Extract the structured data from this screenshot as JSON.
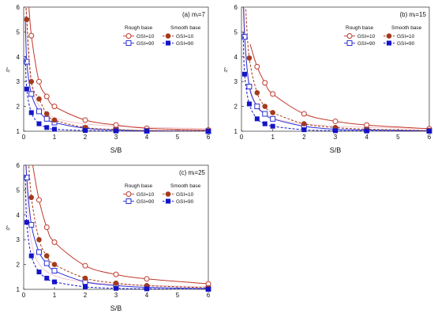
{
  "legend_headers": {
    "rough": "Rough base",
    "smooth": "Smooth base"
  },
  "colors": {
    "gsi10": "#c0392b",
    "gsi10_smooth": "#a33a1c",
    "gsi90": "#2d2fd6",
    "gsi90_smooth": "#1414c8",
    "ref_curve": "#f2b8c0"
  },
  "chart_data": [
    {
      "type": "line",
      "panel_label": "(a) mᵢ=7",
      "xlabel": "S/B",
      "ylabel": "ξᵧ",
      "xlim": [
        0,
        6
      ],
      "ylim": [
        1,
        6
      ],
      "xticks": [
        0,
        1,
        2,
        3,
        4,
        5,
        6
      ],
      "yticks": [
        1,
        2,
        3,
        4,
        5,
        6
      ],
      "grid": false,
      "legend_position": "top-right",
      "series": [
        {
          "name": "GSI=10",
          "base": "rough",
          "marker": "open-circle",
          "line": "solid",
          "color_key": "gsi10",
          "x": [
            0.25,
            0.5,
            0.75,
            1,
            2,
            3,
            4,
            6
          ],
          "y": [
            4.85,
            3.0,
            2.4,
            2.0,
            1.45,
            1.25,
            1.12,
            1.05
          ]
        },
        {
          "name": "GSI=90",
          "base": "rough",
          "marker": "open-square",
          "line": "solid",
          "color_key": "gsi90",
          "x": [
            0.1,
            0.25,
            0.5,
            0.75,
            1,
            2,
            3,
            4,
            6
          ],
          "y": [
            3.8,
            2.5,
            1.8,
            1.5,
            1.35,
            1.12,
            1.05,
            1.02,
            1.0
          ]
        },
        {
          "name": "GSI=10",
          "base": "smooth",
          "marker": "filled-circle",
          "line": "dashed",
          "color_key": "gsi10_smooth",
          "x": [
            0.1,
            0.25,
            0.5,
            0.75,
            1,
            2,
            3,
            4,
            6
          ],
          "y": [
            5.5,
            3.0,
            2.3,
            1.7,
            1.45,
            1.15,
            1.07,
            1.03,
            1.02
          ]
        },
        {
          "name": "GSI=90",
          "base": "smooth",
          "marker": "filled-square",
          "line": "dashed",
          "color_key": "gsi90_smooth",
          "x": [
            0.1,
            0.25,
            0.5,
            0.75,
            1,
            2,
            3,
            4,
            6
          ],
          "y": [
            2.7,
            1.75,
            1.3,
            1.15,
            1.08,
            1.03,
            1.01,
            1.0,
            1.0
          ]
        }
      ]
    },
    {
      "type": "line",
      "panel_label": "(b) mᵢ=15",
      "xlabel": "S/B",
      "ylabel": "ξᵧ",
      "xlim": [
        0,
        6
      ],
      "ylim": [
        1,
        6
      ],
      "xticks": [
        0,
        1,
        2,
        3,
        4,
        5,
        6
      ],
      "yticks": [
        1,
        2,
        3,
        4,
        5,
        6
      ],
      "grid": false,
      "legend_position": "top-right",
      "series": [
        {
          "name": "GSI=10",
          "base": "rough",
          "marker": "open-circle",
          "line": "solid",
          "color_key": "gsi10",
          "x": [
            0.5,
            0.75,
            1,
            2,
            3,
            4,
            6
          ],
          "y": [
            3.6,
            2.95,
            2.5,
            1.7,
            1.4,
            1.25,
            1.1
          ]
        },
        {
          "name": "GSI=90",
          "base": "rough",
          "marker": "open-square",
          "line": "solid",
          "color_key": "gsi90",
          "x": [
            0.1,
            0.25,
            0.5,
            0.75,
            1,
            2,
            3,
            4,
            6
          ],
          "y": [
            4.8,
            2.8,
            2.0,
            1.7,
            1.5,
            1.2,
            1.08,
            1.05,
            1.02
          ]
        },
        {
          "name": "GSI=10",
          "base": "smooth",
          "marker": "filled-circle",
          "line": "dashed",
          "color_key": "gsi10_smooth",
          "x": [
            0.25,
            0.5,
            0.75,
            1,
            2,
            3,
            4,
            6
          ],
          "y": [
            3.95,
            2.55,
            2.0,
            1.75,
            1.3,
            1.15,
            1.08,
            1.03
          ]
        },
        {
          "name": "GSI=90",
          "base": "smooth",
          "marker": "filled-square",
          "line": "dashed",
          "color_key": "gsi90_smooth",
          "x": [
            0.1,
            0.25,
            0.5,
            0.75,
            1,
            2,
            3,
            4,
            6
          ],
          "y": [
            3.3,
            2.1,
            1.5,
            1.3,
            1.2,
            1.06,
            1.02,
            1.01,
            1.0
          ]
        }
      ]
    },
    {
      "type": "line",
      "panel_label": "(c) mᵢ=25",
      "xlabel": "S/B",
      "ylabel": "ξᵧ",
      "xlim": [
        0,
        6
      ],
      "ylim": [
        1,
        6
      ],
      "xticks": [
        0,
        1,
        2,
        3,
        4,
        5,
        6
      ],
      "yticks": [
        1,
        2,
        3,
        4,
        5,
        6
      ],
      "grid": false,
      "legend_position": "top-right",
      "series": [
        {
          "name": "GSI=10",
          "base": "rough",
          "marker": "open-circle",
          "line": "solid",
          "color_key": "gsi10",
          "x": [
            0.5,
            0.75,
            1,
            2,
            3,
            4,
            6
          ],
          "y": [
            4.6,
            3.5,
            2.9,
            1.95,
            1.6,
            1.42,
            1.22
          ]
        },
        {
          "name": "GSI=90",
          "base": "rough",
          "marker": "open-square",
          "line": "solid",
          "color_key": "gsi90",
          "x": [
            0.1,
            0.25,
            0.5,
            0.75,
            1,
            2,
            3,
            4,
            6
          ],
          "y": [
            5.5,
            3.6,
            2.5,
            2.05,
            1.75,
            1.3,
            1.15,
            1.08,
            1.03
          ]
        },
        {
          "name": "GSI=10",
          "base": "smooth",
          "marker": "filled-circle",
          "line": "dashed",
          "color_key": "gsi10_smooth",
          "x": [
            0.25,
            0.5,
            0.75,
            1,
            2,
            3,
            4,
            6
          ],
          "y": [
            4.7,
            3.0,
            2.35,
            2.0,
            1.45,
            1.25,
            1.15,
            1.06
          ]
        },
        {
          "name": "GSI=90",
          "base": "smooth",
          "marker": "filled-square",
          "line": "dashed",
          "color_key": "gsi90_smooth",
          "x": [
            0.1,
            0.25,
            0.5,
            0.75,
            1,
            2,
            3,
            4,
            6
          ],
          "y": [
            3.7,
            2.35,
            1.7,
            1.45,
            1.3,
            1.1,
            1.04,
            1.02,
            1.0
          ]
        }
      ]
    }
  ]
}
